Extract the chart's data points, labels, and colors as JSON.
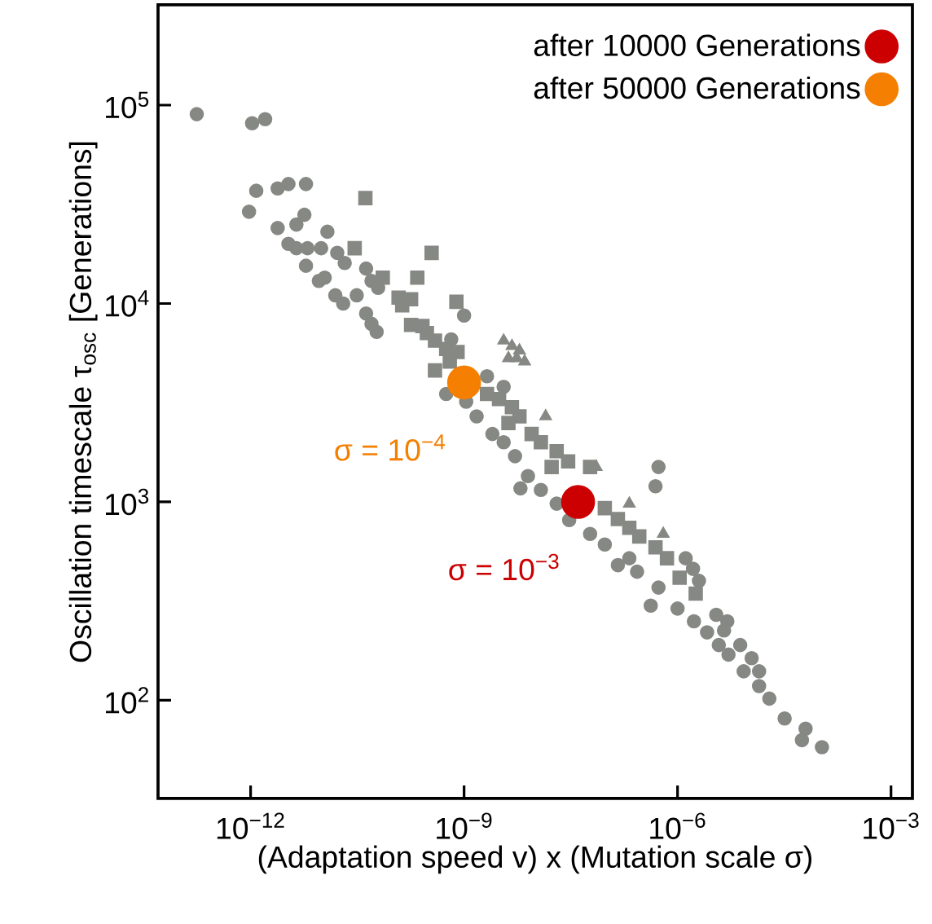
{
  "chart_data": {
    "type": "scatter",
    "xlabel": "(Adaptation speed v) x (Mutation scale σ)",
    "ylabel": "Oscillation timescale τ$_{osc}$ [Generations]",
    "log": "xy",
    "legend": "top right",
    "xlim": [
      5e-14,
      0.002
    ],
    "ylim": [
      32,
      320000.0
    ],
    "xticks": [
      {
        "value": 1e-12,
        "label": "10$^{−12}$"
      },
      {
        "value": 1e-09,
        "label": "10$^{−9}$"
      },
      {
        "value": 1e-06,
        "label": "10$^{−6}$"
      },
      {
        "value": 0.001,
        "label": "10$^{−3}$"
      }
    ],
    "yticks": [
      {
        "value": 100,
        "label": "10$^{2}$"
      },
      {
        "value": 1000,
        "label": "10$^{3}$"
      },
      {
        "value": 10000,
        "label": "10$^{4}$"
      },
      {
        "value": 100000,
        "label": "10$^{5}$"
      }
    ],
    "series": [
      {
        "color": "#868884",
        "marker": "circle",
        "x": [
          1.75e-13,
          1.2e-12,
          9.5e-13,
          2.4e-12,
          3.4e-12,
          4.4e-12,
          6.3e-12,
          6e-12,
          9.1e-12,
          1.1e-11,
          1.55e-11,
          2e-11,
          3.1e-11,
          4.2e-11,
          5e-11,
          5.9e-11,
          5.6e-10,
          1.07e-09,
          1.8e-09,
          2.5e-09,
          3.6e-09,
          5.2e-09,
          7.9e-09,
          1.2e-08,
          2e-08,
          5.9e-08,
          9.5e-08,
          2.1e-07,
          2.7e-07,
          5.4e-07,
          1e-06,
          1.7e-06,
          2.6e-06,
          3.8e-06,
          5.2e-06,
          8.5e-06,
          1.4e-05,
          1.95e-05,
          3.2e-05,
          6.3e-05,
          0.000107,
          5.6e-05,
          6.2e-09,
          3e-08,
          1.45e-07,
          4.2e-07
        ],
        "values": [
          90000.0,
          37000.0,
          29000.0,
          24000.0,
          20000.0,
          19000.0,
          19000.0,
          15500.0,
          13000.0,
          13500.0,
          11000.0,
          10000.0,
          11000.0,
          8900.0,
          7900.0,
          7200.0,
          3500.0,
          3200.0,
          null,
          2200.0,
          2000.0,
          1700.0,
          1350.0,
          1150.0,
          980,
          690,
          610,
          520,
          445,
          370,
          290,
          250,
          220,
          190,
          170,
          140,
          118,
          102,
          81,
          72,
          58,
          63,
          1170.0,
          810,
          480,
          300
        ]
      },
      {
        "color": "#868884",
        "marker": "circle",
        "x": [
          1.05e-12,
          1.6e-12,
          2.4e-12,
          3.4e-12,
          6e-12,
          5.7e-12,
          4.4e-12,
          1.2e-11,
          9.8e-12,
          1.65e-11,
          2.1e-11,
          3.1e-11,
          4.2e-11,
          5e-11,
          6.2e-11,
          8.1e-10,
          1e-09,
          6.6e-10,
          5.4e-07,
          4.9e-07,
          1.3e-06,
          1.65e-06,
          2e-06,
          3.5e-06,
          5e-06,
          4.5e-06,
          7.6e-06,
          1.1e-05,
          1.4e-05,
          2.1e-09,
          3.6e-09,
          1.5e-09
        ],
        "values": [
          81000.0,
          85000.0,
          38000.0,
          40000.0,
          40000.0,
          28000.0,
          25000.0,
          23000.0,
          19000.0,
          18000.0,
          16000.0,
          null,
          15000.0,
          13000.0,
          12000.0,
          null,
          8700.0,
          6600.0,
          1500.0,
          1200.0,
          520,
          460,
          400,
          270,
          250,
          225,
          190,
          163,
          140,
          4300.0,
          3800.0,
          2700.0
        ]
      },
      {
        "color": "#868884",
        "marker": "square",
        "x": [
          4.1e-11,
          3.5e-10,
          2.2e-10,
          1.2e-10,
          7.8e-10
        ],
        "values": [
          34000.0,
          18000.0,
          13500.0,
          10700.0,
          10200.0
        ]
      },
      {
        "color": "#868884",
        "marker": "square",
        "x": [
          2.9e-11,
          7.2e-11,
          1.35e-10,
          1.8e-10,
          1.8e-10,
          2.6e-10,
          3e-10,
          3.9e-10,
          5.6e-10,
          8.1e-10,
          3.9e-10,
          6.3e-10,
          1.5e-09,
          2.1e-09,
          3.1e-09,
          4.7e-09,
          6e-09,
          4.2e-09,
          8.9e-09,
          1.2e-08,
          2e-08,
          1.7e-08,
          2.9e-08,
          5.9e-08,
          9.5e-08,
          1.45e-07,
          2.1e-07,
          2.9e-07,
          4.9e-07,
          7.1e-07,
          1.07e-06,
          1.8e-06
        ],
        "values": [
          19000.0,
          13500.0,
          9800.0,
          10500.0,
          7800.0,
          7700.0,
          7100.0,
          6500.0,
          5900.0,
          5700.0,
          4600.0,
          5100.0,
          null,
          3500.0,
          3300.0,
          3000.0,
          2700.0,
          2500.0,
          2200.0,
          2000.0,
          1800.0,
          1500.0,
          1600.0,
          1500.0,
          930,
          820,
          740,
          670,
          590,
          520,
          415,
          345
        ]
      },
      {
        "color": "#868884",
        "marker": "triangle",
        "x": [
          1.4e-08,
          7.2e-08,
          2.1e-07,
          6.3e-07
        ],
        "values": [
          2700.0,
          1500.0,
          980,
          690
        ]
      },
      {
        "color": "#868884",
        "marker": "triangle",
        "x": [
          3.6e-09,
          4.7e-09,
          6e-09,
          4.2e-09,
          5.5e-09,
          7.1e-09
        ],
        "values": [
          6500.0,
          6100.0,
          5800.0,
          5300.0,
          5300.0,
          5100.0
        ]
      },
      {
        "name": "after 10000 Generations",
        "color": "#cc0000",
        "marker": "circle",
        "x": [
          4e-08
        ],
        "values": [
          1000
        ]
      },
      {
        "name": "after 50000 Generations",
        "color": "#f57f00",
        "marker": "circle",
        "x": [
          1e-09
        ],
        "values": [
          4000
        ]
      }
    ],
    "annotations": [
      {
        "text": "σ = 10$^{−4}$",
        "x": 1e-09,
        "y": 4000
      },
      {
        "text": "σ = 10$^{−3}$",
        "x": 4e-08,
        "y": 1000
      }
    ]
  }
}
